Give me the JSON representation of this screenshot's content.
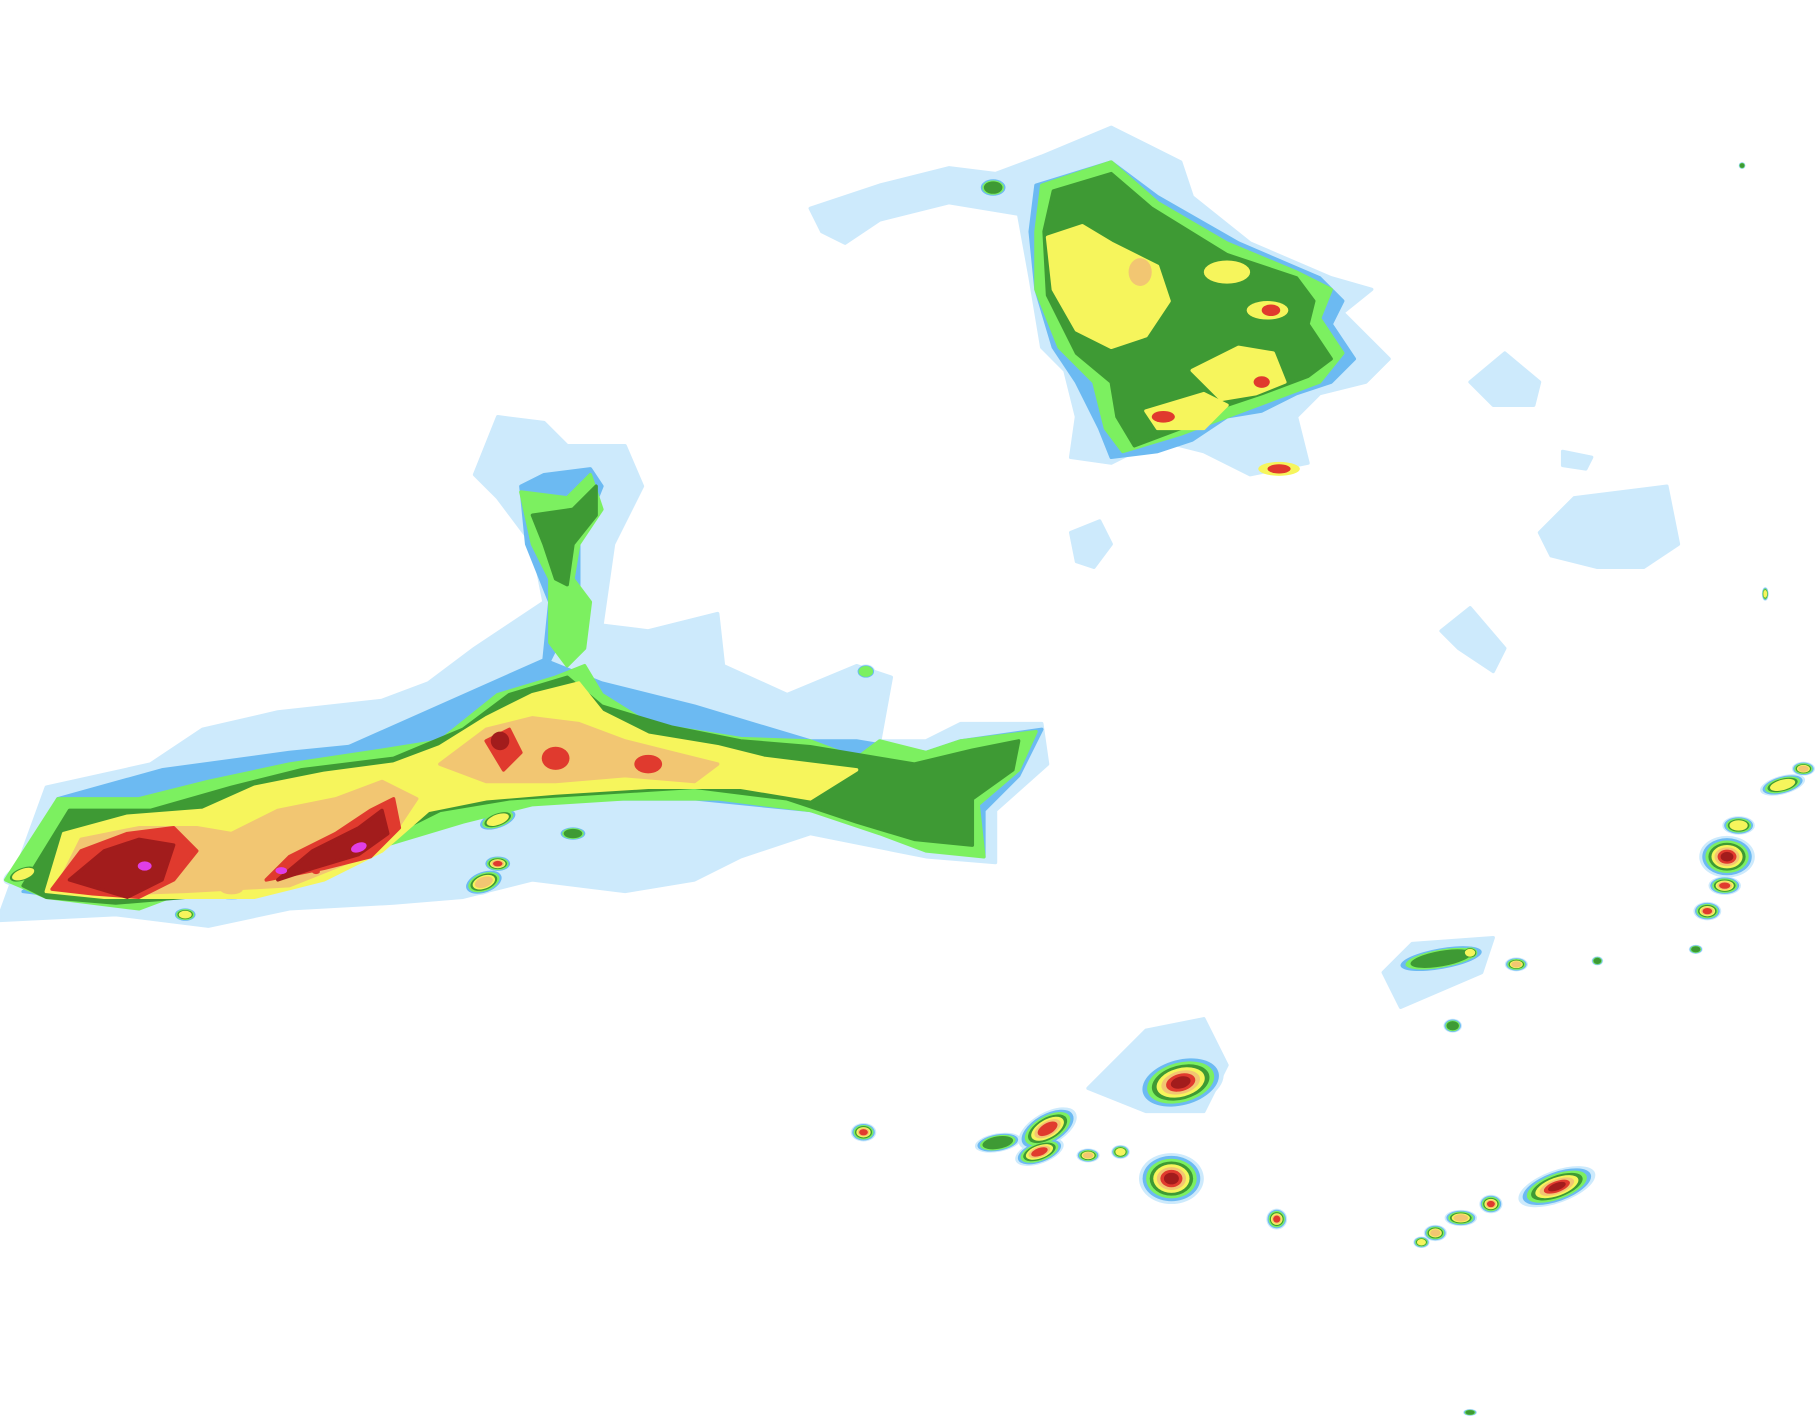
{
  "map": {
    "layer": "precipitation-radar",
    "background": "#ffffff",
    "palette": {
      "very_light": "#cdeafc",
      "light": "#6cbaf2",
      "light_moderate": "#7cf060",
      "moderate": "#3e9a34",
      "heavy": "#f6f55c",
      "heavier": "#f2c672",
      "intense": "#e03a2e",
      "very_intense": "#a21c1c",
      "extreme": "#e03ee6"
    }
  }
}
